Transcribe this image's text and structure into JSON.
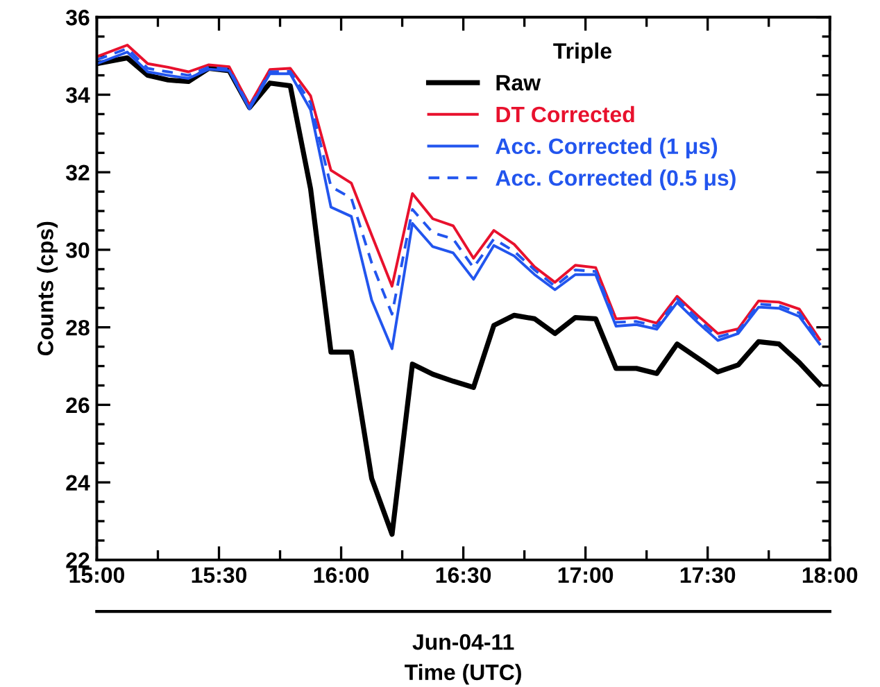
{
  "chart_data": {
    "type": "line",
    "xlabel": "Jun-04-11\nTime (UTC)",
    "ylabel": "Counts (cps)",
    "legend_title": "Triple",
    "legend": "top right",
    "grid": false,
    "marker": "none",
    "x": [
      15,
      15.125,
      15.2083,
      15.2917,
      15.375,
      15.4583,
      15.5417,
      15.625,
      15.7083,
      15.7917,
      15.875,
      15.9583,
      16.0417,
      16.125,
      16.2083,
      16.2917,
      16.375,
      16.4583,
      16.5417,
      16.625,
      16.7083,
      16.7917,
      16.875,
      16.9583,
      17.0417,
      17.125,
      17.2083,
      17.2917,
      17.375,
      17.4583,
      17.5417,
      17.625,
      17.7083,
      17.7917,
      17.875,
      17.9583
    ],
    "xlim": [
      15,
      18
    ],
    "xticks": [
      {
        "value": 15,
        "label": "15:00"
      },
      {
        "value": 15.25,
        "label": null
      },
      {
        "value": 15.5,
        "label": "15:30"
      },
      {
        "value": 15.75,
        "label": null
      },
      {
        "value": 16,
        "label": "16:00"
      },
      {
        "value": 16.25,
        "label": null
      },
      {
        "value": 16.5,
        "label": "16:30"
      },
      {
        "value": 16.75,
        "label": null
      },
      {
        "value": 17,
        "label": "17:00"
      },
      {
        "value": 17.25,
        "label": null
      },
      {
        "value": 17.5,
        "label": "17:30"
      },
      {
        "value": 17.75,
        "label": null
      },
      {
        "value": 18,
        "label": "18:00"
      }
    ],
    "ylim": [
      22,
      36
    ],
    "yticks": [
      22,
      {
        "value": 22.5,
        "label": null
      },
      {
        "value": 23,
        "label": null
      },
      {
        "value": 23.5,
        "label": null
      },
      24,
      {
        "value": 24.5,
        "label": null
      },
      {
        "value": 25,
        "label": null
      },
      {
        "value": 25.5,
        "label": null
      },
      26,
      {
        "value": 26.5,
        "label": null
      },
      {
        "value": 27,
        "label": null
      },
      {
        "value": 27.5,
        "label": null
      },
      28,
      {
        "value": 28.5,
        "label": null
      },
      {
        "value": 29,
        "label": null
      },
      {
        "value": 29.5,
        "label": null
      },
      30,
      {
        "value": 30.5,
        "label": null
      },
      {
        "value": 31,
        "label": null
      },
      {
        "value": 31.5,
        "label": null
      },
      32,
      {
        "value": 32.5,
        "label": null
      },
      {
        "value": 33,
        "label": null
      },
      {
        "value": 33.5,
        "label": null
      },
      34,
      {
        "value": 34.5,
        "label": null
      },
      {
        "value": 35,
        "label": null
      },
      {
        "value": 35.5,
        "label": null
      },
      36
    ],
    "series": [
      {
        "name": "Raw",
        "color": "#000000",
        "line_style": "solid",
        "values": [
          34.8,
          34.95,
          34.5,
          34.38,
          34.34,
          34.68,
          34.62,
          33.67,
          34.3,
          34.23,
          31.57,
          27.36,
          27.36,
          24.1,
          22.66,
          27.05,
          26.79,
          26.61,
          26.45,
          28.05,
          28.31,
          28.22,
          27.84,
          28.25,
          28.22,
          26.94,
          26.94,
          26.81,
          27.57,
          27.21,
          26.85,
          27.03,
          27.63,
          27.57,
          27.09,
          26.53
        ]
      },
      {
        "name": "DT Corrected",
        "color": "#e8112d",
        "line_style": "solid",
        "values": [
          34.98,
          35.28,
          34.8,
          34.71,
          34.59,
          34.77,
          34.72,
          33.73,
          34.65,
          34.68,
          33.97,
          32.05,
          31.72,
          30.38,
          29.06,
          31.45,
          30.8,
          30.62,
          29.78,
          30.5,
          30.14,
          29.56,
          29.16,
          29.6,
          29.54,
          28.22,
          28.25,
          28.11,
          28.8,
          28.31,
          27.84,
          27.96,
          28.68,
          28.65,
          28.47,
          27.69
        ]
      },
      {
        "name": "Acc. Corrected (1 μs)",
        "color": "#2255ee",
        "line_style": "solid",
        "values": [
          34.8,
          35.1,
          34.59,
          34.5,
          34.42,
          34.66,
          34.62,
          33.63,
          34.54,
          34.54,
          33.61,
          31.1,
          30.86,
          28.7,
          27.45,
          30.68,
          30.08,
          29.92,
          29.24,
          30.11,
          29.84,
          29.36,
          28.97,
          29.36,
          29.36,
          28.03,
          28.07,
          27.95,
          28.64,
          28.13,
          27.66,
          27.84,
          28.52,
          28.49,
          28.28,
          27.57
        ]
      },
      {
        "name": "Acc. Corrected (0.5 μs)",
        "color": "#2255ee",
        "line_style": "dashed",
        "values": [
          34.9,
          35.19,
          34.68,
          34.59,
          34.5,
          34.71,
          34.66,
          33.68,
          34.59,
          34.6,
          33.79,
          31.63,
          31.33,
          29.66,
          28.34,
          31.04,
          30.44,
          30.28,
          29.54,
          30.28,
          29.96,
          29.48,
          29.06,
          29.48,
          29.44,
          28.13,
          28.15,
          28.03,
          28.73,
          28.22,
          27.75,
          27.9,
          28.6,
          28.56,
          28.37,
          27.63
        ]
      }
    ]
  }
}
